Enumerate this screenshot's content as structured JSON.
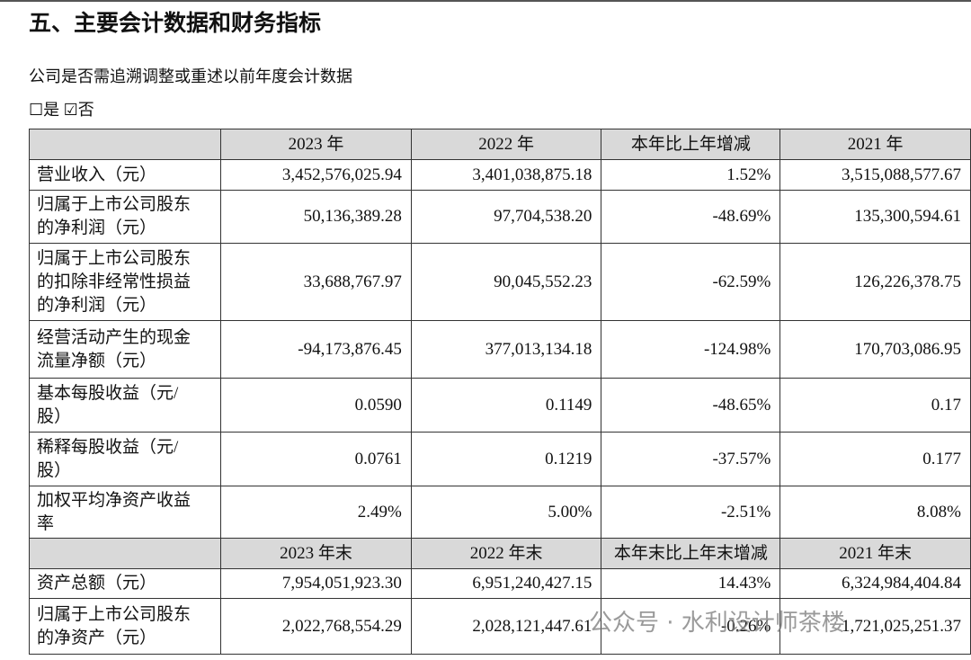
{
  "header": {
    "title": "五、主要会计数据和财务指标",
    "question": "公司是否需追溯调整或重述以前年度会计数据",
    "options": "☐是 ☑否"
  },
  "table": {
    "header": [
      "",
      "2023 年",
      "2022 年",
      "本年比上年增减",
      "2021 年"
    ],
    "rows": [
      [
        "营业收入（元）",
        "3,452,576,025.94",
        "3,401,038,875.18",
        "1.52%",
        "3,515,088,577.67"
      ],
      [
        "归属于上市公司股东的净利润（元）",
        "50,136,389.28",
        "97,704,538.20",
        "-48.69%",
        "135,300,594.61"
      ],
      [
        "归属于上市公司股东的扣除非经常性损益的净利润（元）",
        "33,688,767.97",
        "90,045,552.23",
        "-62.59%",
        "126,226,378.75"
      ],
      [
        "经营活动产生的现金流量净额（元）",
        "-94,173,876.45",
        "377,013,134.18",
        "-124.98%",
        "170,703,086.95"
      ],
      [
        "基本每股收益（元/股）",
        "0.0590",
        "0.1149",
        "-48.65%",
        "0.17"
      ],
      [
        "稀释每股收益（元/股）",
        "0.0761",
        "0.1219",
        "-37.57%",
        "0.177"
      ],
      [
        "加权平均净资产收益率",
        "2.49%",
        "5.00%",
        "-2.51%",
        "8.08%"
      ]
    ],
    "subheader": [
      "",
      "2023 年末",
      "2022 年末",
      "本年末比上年末增减",
      "2021 年末"
    ],
    "subrows": [
      [
        "资产总额（元）",
        "7,954,051,923.30",
        "6,951,240,427.15",
        "14.43%",
        "6,324,984,404.84"
      ],
      [
        "归属于上市公司股东的净资产（元）",
        "2,022,768,554.29",
        "2,028,121,447.61",
        "-0.26%",
        "1,721,025,251.37"
      ]
    ]
  },
  "watermark": "公众号 · 水利设计师茶楼"
}
